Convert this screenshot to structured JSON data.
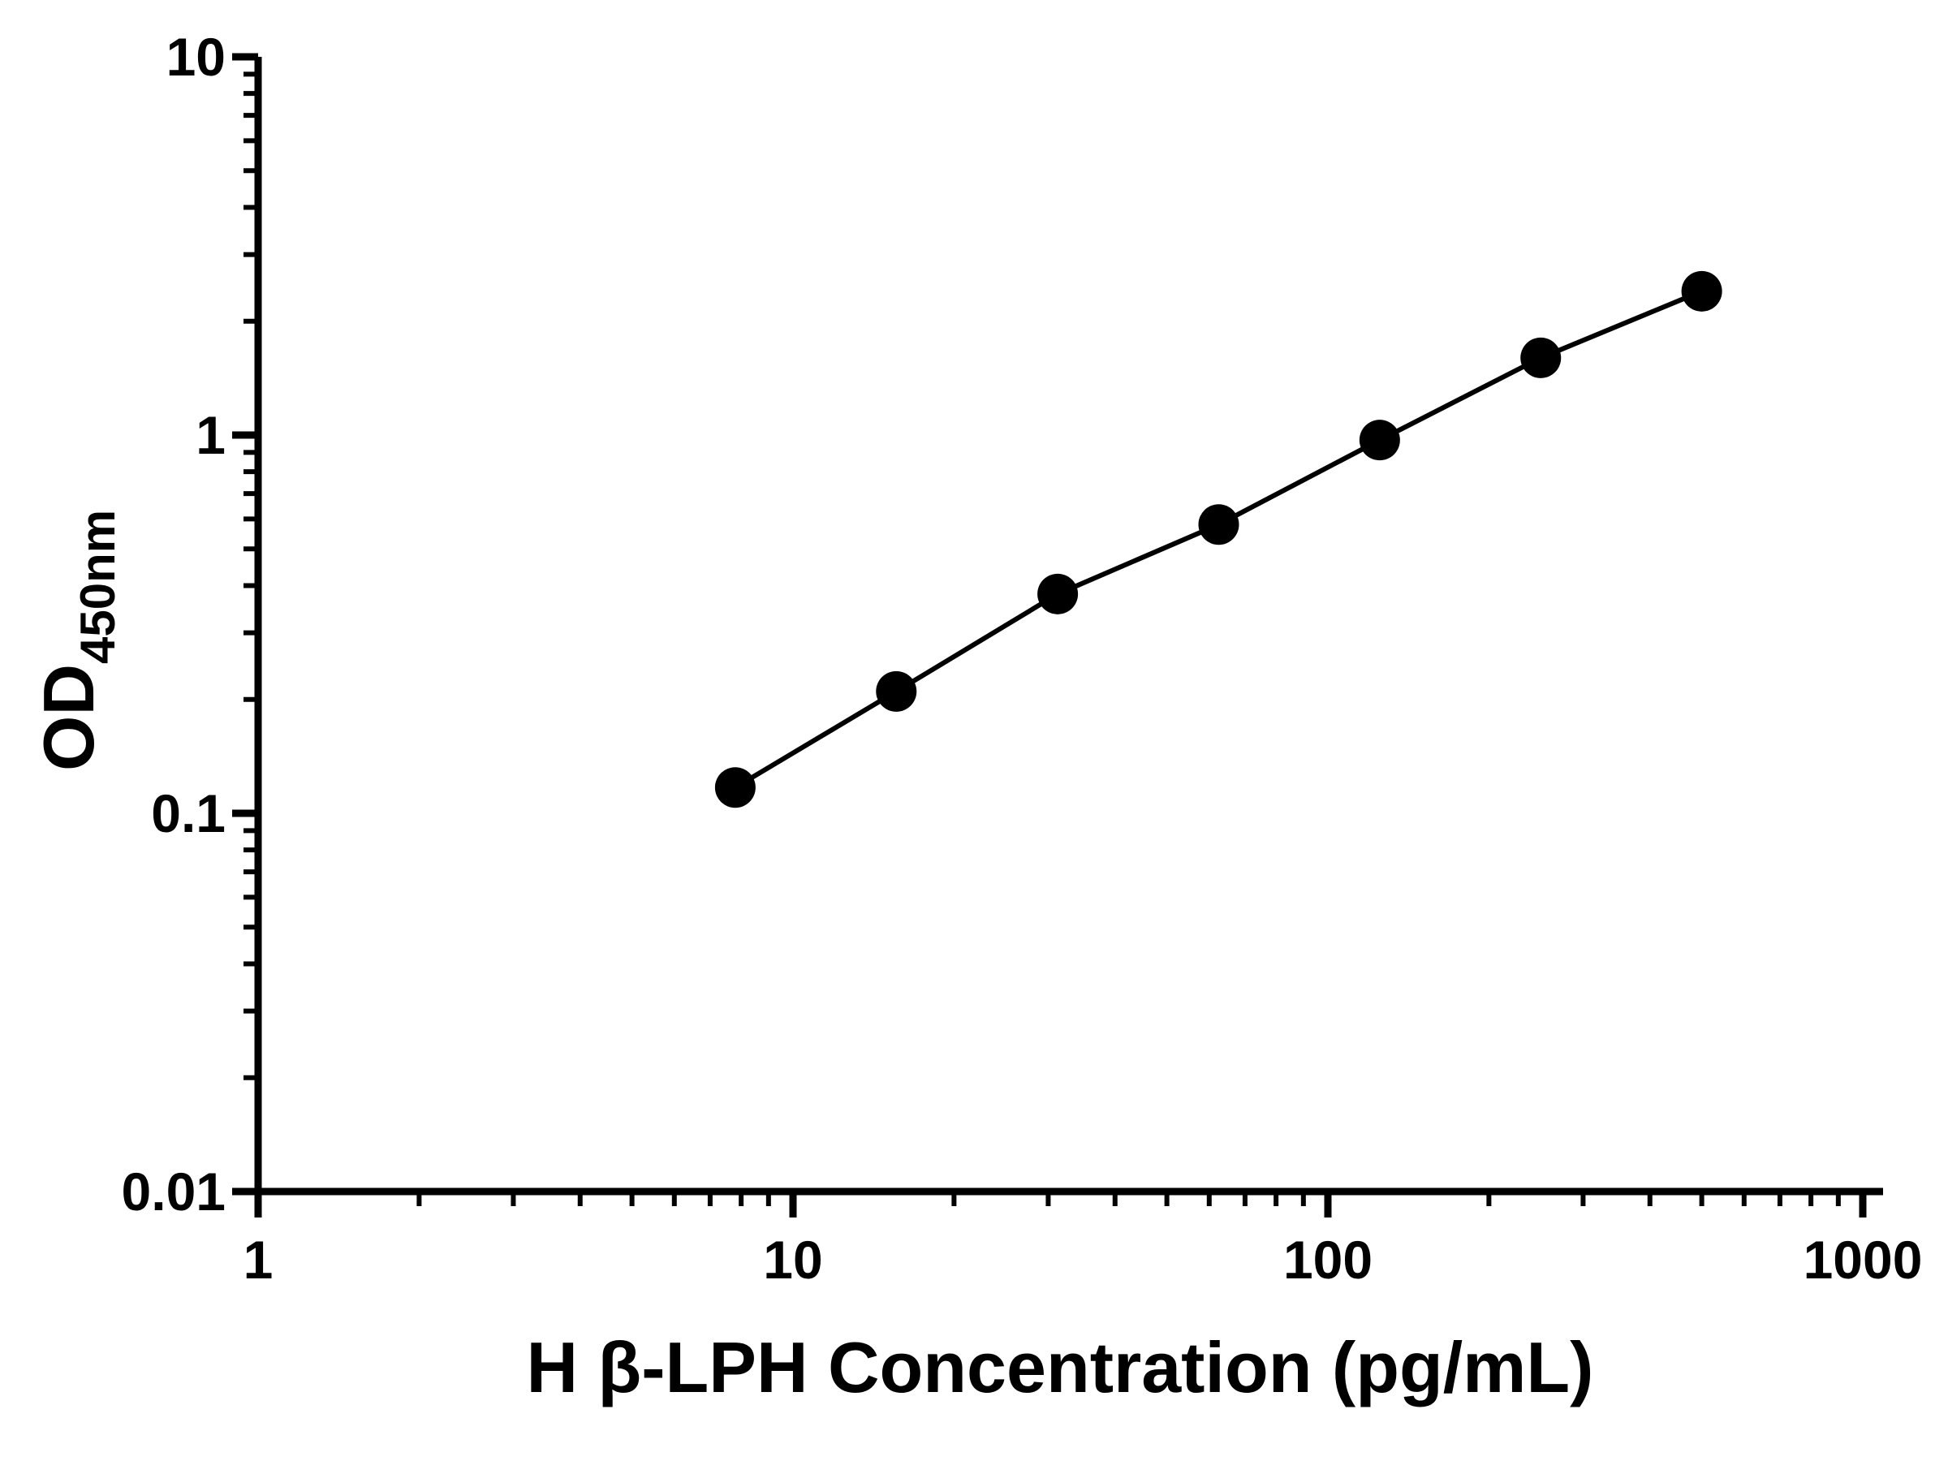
{
  "chart_data": {
    "type": "scatter",
    "title": "",
    "xlabel": "H β-LPH Concentration (pg/mL)",
    "ylabel_main": "OD",
    "ylabel_sub": "450nm",
    "x_scale": "log",
    "y_scale": "log",
    "xlim": [
      1,
      1000
    ],
    "ylim": [
      0.01,
      10
    ],
    "x_ticks": [
      1,
      10,
      100,
      1000
    ],
    "y_ticks": [
      0.01,
      0.1,
      1,
      10
    ],
    "x": [
      7.8,
      15.6,
      31.25,
      62.5,
      125,
      250,
      500
    ],
    "y": [
      0.117,
      0.21,
      0.38,
      0.58,
      0.97,
      1.6,
      2.4
    ],
    "series_name": "H β-LPH standard curve",
    "marker_color": "#000000",
    "line_color": "#000000",
    "background": "#ffffff",
    "grid": "off",
    "legend": "none"
  }
}
